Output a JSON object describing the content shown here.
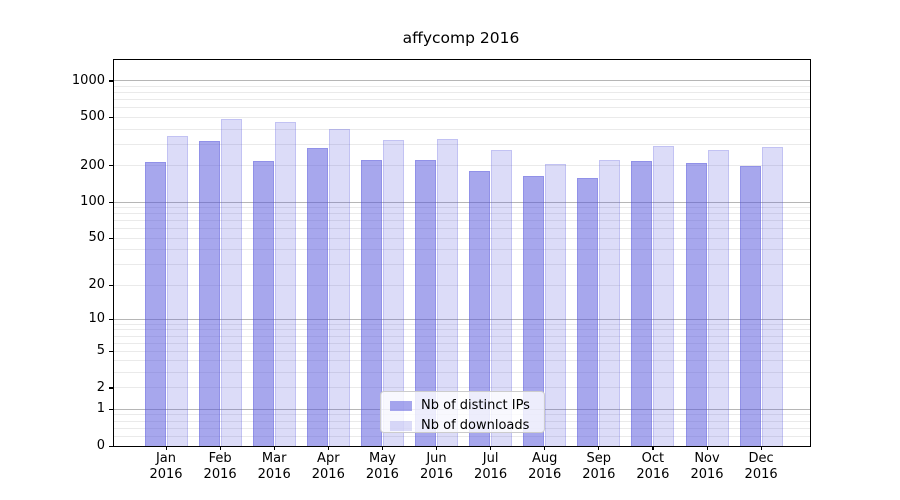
{
  "chart_data": {
    "type": "bar",
    "title": "affycomp 2016",
    "x_tick_months": [
      "Jan",
      "Feb",
      "Mar",
      "Apr",
      "May",
      "Jun",
      "Jul",
      "Aug",
      "Sep",
      "Oct",
      "Nov",
      "Dec"
    ],
    "x_tick_year": "2016",
    "series": [
      {
        "name": "Nb of distinct IPs",
        "fill": "rgba(80,80,220,0.5)",
        "edge": "rgba(80,80,220,0.25)",
        "values": [
          215,
          318,
          220,
          280,
          222,
          225,
          180,
          165,
          158,
          219,
          212,
          198
        ]
      },
      {
        "name": "Nb of downloads",
        "fill": "rgba(80,80,220,0.2)",
        "edge": "rgba(80,80,220,0.18)",
        "values": [
          352,
          490,
          458,
          400,
          325,
          330,
          270,
          205,
          222,
          292,
          270,
          287
        ]
      }
    ],
    "y_axis": {
      "scale": "log10(1+value)",
      "labeled_ticks": [
        0,
        1,
        2,
        5,
        10,
        20,
        50,
        100,
        200,
        500,
        1000
      ],
      "major_gridlines": [
        1,
        10,
        100,
        1000
      ],
      "minor_gridlines": [
        0.2,
        0.4,
        0.6,
        0.8,
        3,
        4,
        6,
        7,
        8,
        9,
        30,
        40,
        60,
        70,
        80,
        90,
        300,
        400,
        600,
        700,
        800,
        900
      ],
      "top_value": 1470
    },
    "legend": {
      "position": "lower center",
      "entries": [
        "Nb of distinct IPs",
        "Nb of downloads"
      ]
    },
    "colors": {
      "major_grid": "#b6b6b6",
      "minor_grid": "#eaeaea",
      "spine": "#000000",
      "text": "#000000",
      "background": "#ffffff",
      "legend_border": "#cccccc"
    }
  }
}
